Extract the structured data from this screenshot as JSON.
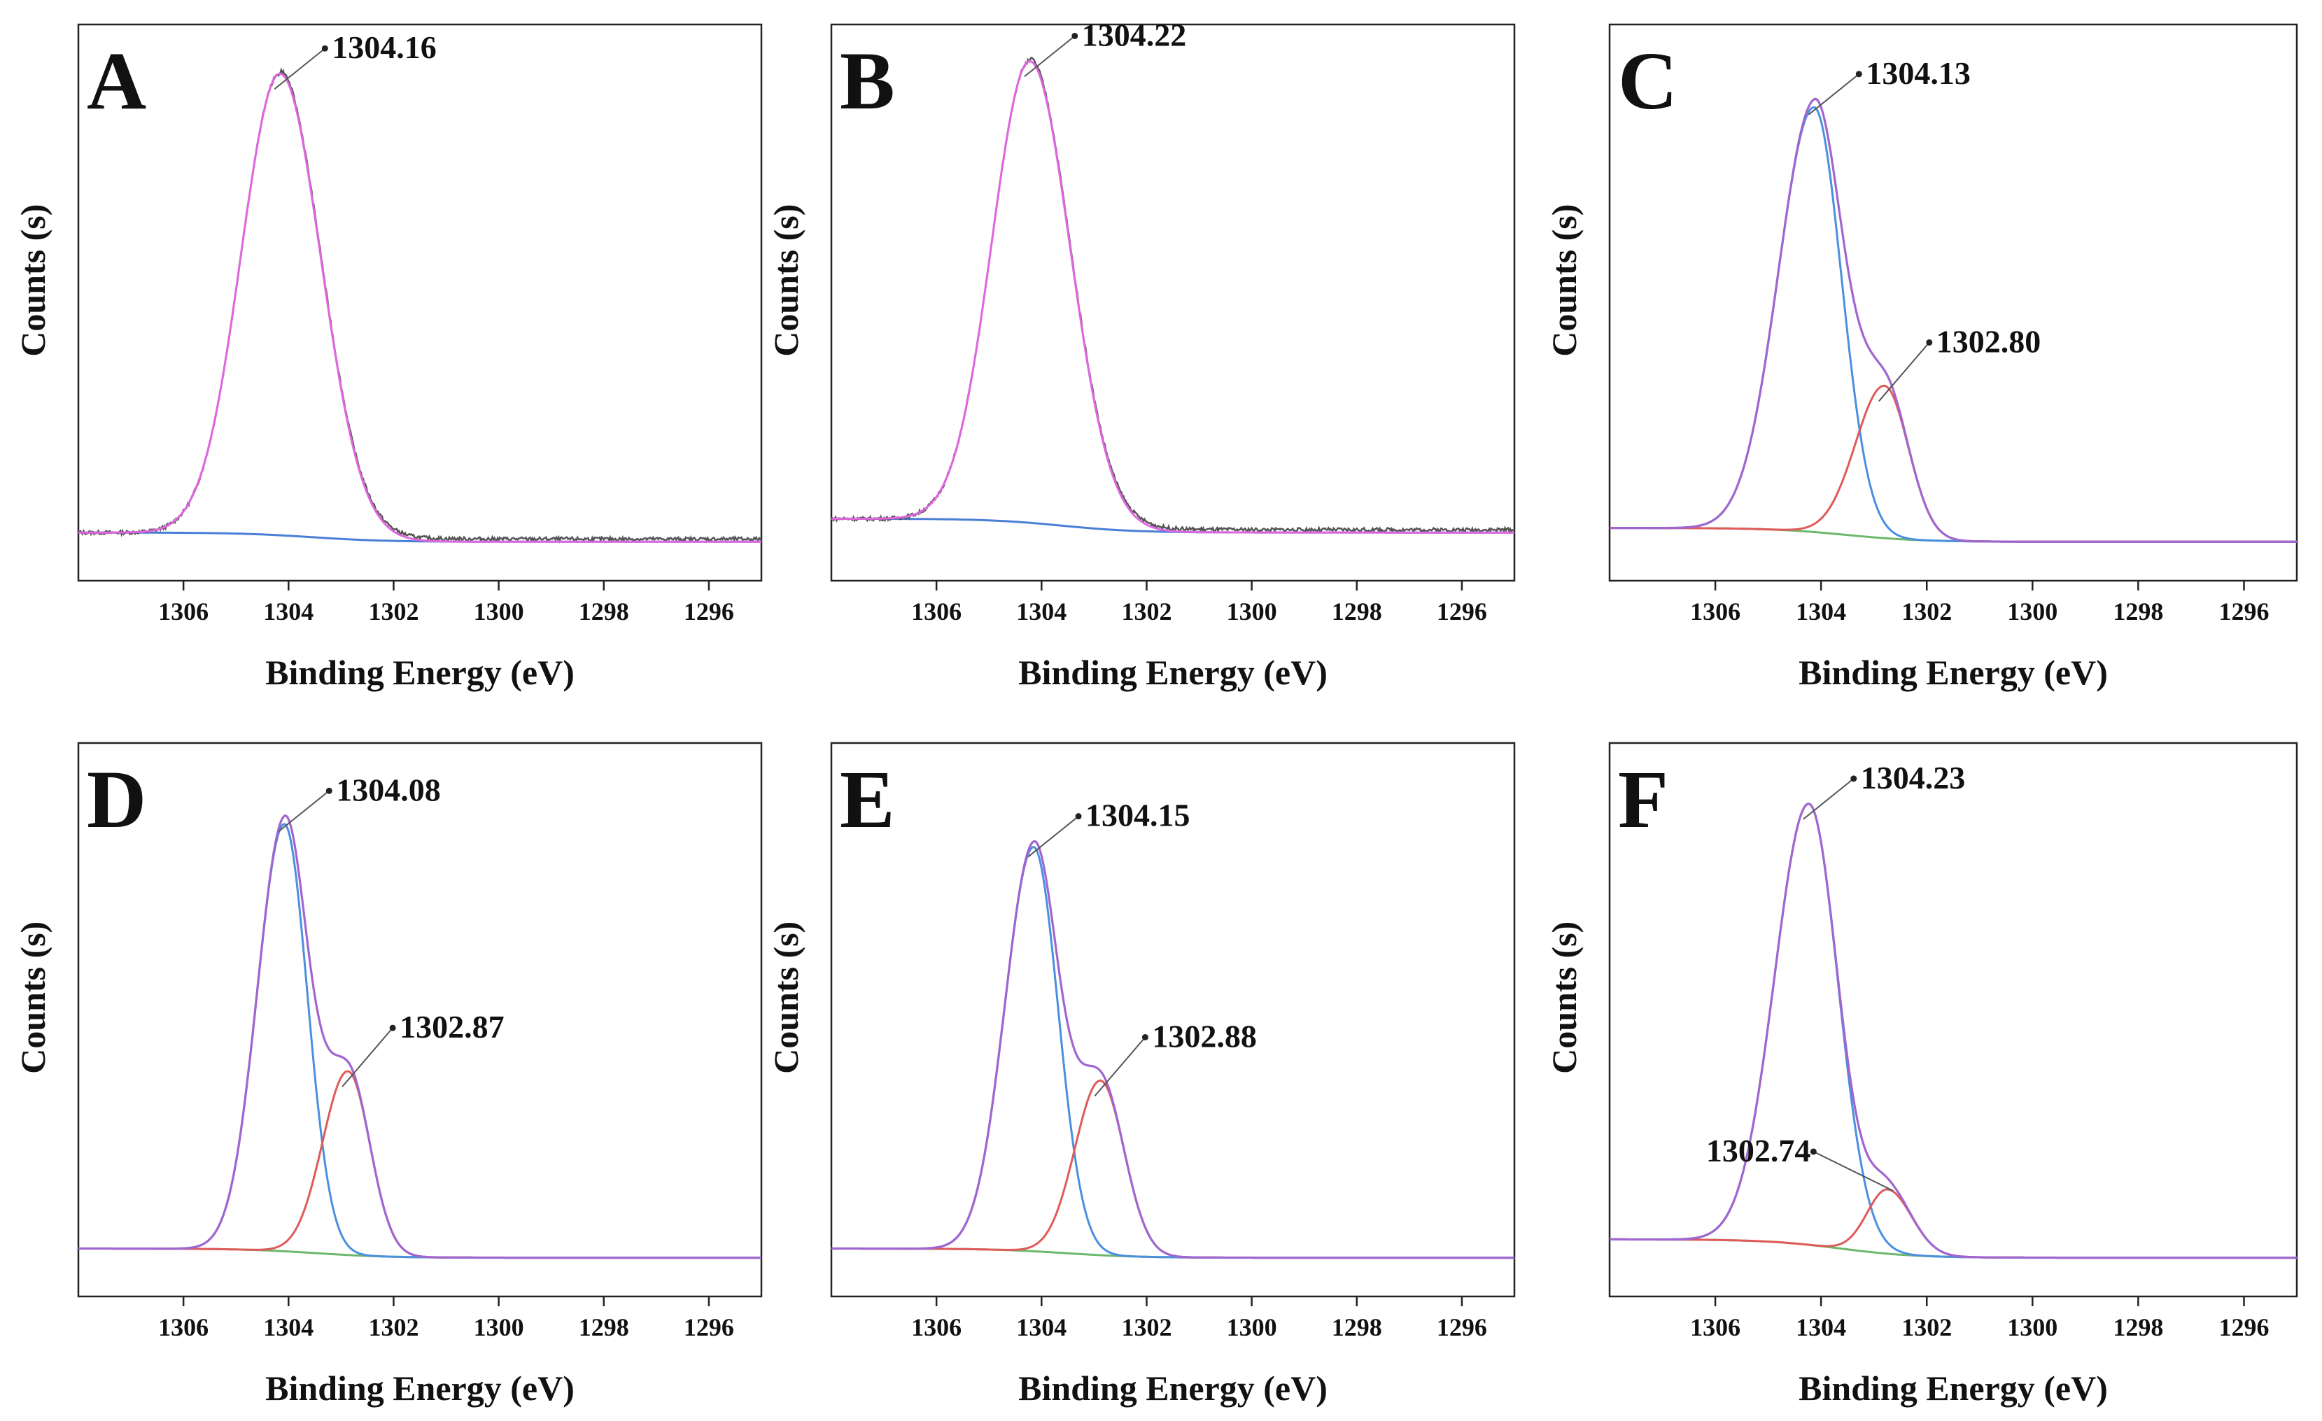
{
  "figure": {
    "xlabel": "Binding Energy (eV)",
    "ylabel": "Counts (s)"
  },
  "chart_data": [
    {
      "panel": "A",
      "type": "line",
      "xlabel": "Binding Energy (eV)",
      "ylabel": "Counts (s)",
      "xlim": [
        1308,
        1295
      ],
      "x_reversed": true,
      "xticks": [
        1306,
        1304,
        1302,
        1300,
        1298,
        1296
      ],
      "background": [
        0.02,
        0.0
      ],
      "envelope_peak": 1.0,
      "components": [
        {
          "name": "main",
          "center": 1304.16,
          "height": 1.0,
          "width_left": 1.15,
          "width_right": 1.2,
          "color": "#e066e0"
        }
      ],
      "raw_color": "#555555",
      "background_color": "#4a7fd6",
      "annotations": [
        {
          "text": "1304.16",
          "x": 1304.16
        }
      ]
    },
    {
      "panel": "B",
      "type": "line",
      "xlabel": "Binding Energy (eV)",
      "ylabel": "Counts (s)",
      "xlim": [
        1308,
        1295
      ],
      "x_reversed": true,
      "xticks": [
        1306,
        1304,
        1302,
        1300,
        1298,
        1296
      ],
      "background": [
        0.05,
        0.02
      ],
      "envelope_peak": 1.0,
      "components": [
        {
          "name": "main",
          "center": 1304.22,
          "height": 1.0,
          "width_left": 1.12,
          "width_right": 1.18,
          "color": "#e066e0"
        }
      ],
      "raw_color": "#555555",
      "background_color": "#4a7fd6",
      "annotations": [
        {
          "text": "1304.22",
          "x": 1304.22
        }
      ]
    },
    {
      "panel": "C",
      "type": "line",
      "xlabel": "Binding Energy (eV)",
      "ylabel": "Counts (s)",
      "xlim": [
        1308,
        1295
      ],
      "x_reversed": true,
      "xticks": [
        1306,
        1304,
        1302,
        1300,
        1298,
        1296
      ],
      "background": [
        0.03,
        0.0
      ],
      "components": [
        {
          "name": "peak1",
          "center": 1304.13,
          "height": 0.92,
          "width_left": 1.05,
          "width_right": 0.8,
          "color": "#4a8fe0"
        },
        {
          "name": "peak2",
          "center": 1302.8,
          "height": 0.33,
          "width_left": 0.85,
          "width_right": 0.7,
          "color": "#e05a5a"
        }
      ],
      "envelope_color": "#a066d0",
      "background_color": "#6db86d",
      "annotations": [
        {
          "text": "1304.13",
          "x": 1304.13
        },
        {
          "text": "1302.80",
          "x": 1302.8
        }
      ]
    },
    {
      "panel": "D",
      "type": "line",
      "xlabel": "Binding Energy (eV)",
      "ylabel": "Counts (s)",
      "xlim": [
        1308,
        1295
      ],
      "x_reversed": true,
      "xticks": [
        1306,
        1304,
        1302,
        1300,
        1298,
        1296
      ],
      "background": [
        0.02,
        0.0
      ],
      "components": [
        {
          "name": "peak1",
          "center": 1304.08,
          "height": 0.93,
          "width_left": 0.8,
          "width_right": 0.68,
          "color": "#4a8fe0"
        },
        {
          "name": "peak2",
          "center": 1302.87,
          "height": 0.4,
          "width_left": 0.75,
          "width_right": 0.65,
          "color": "#e05a5a"
        }
      ],
      "envelope_color": "#a066d0",
      "background_color": "#6db86d",
      "annotations": [
        {
          "text": "1304.08",
          "x": 1304.08
        },
        {
          "text": "1302.87",
          "x": 1302.87
        }
      ]
    },
    {
      "panel": "E",
      "type": "line",
      "xlabel": "Binding Energy (eV)",
      "ylabel": "Counts (s)",
      "xlim": [
        1308,
        1295
      ],
      "x_reversed": true,
      "xticks": [
        1306,
        1304,
        1302,
        1300,
        1298,
        1296
      ],
      "background": [
        0.02,
        0.0
      ],
      "components": [
        {
          "name": "peak1",
          "center": 1304.15,
          "height": 0.88,
          "width_left": 0.85,
          "width_right": 0.72,
          "color": "#4a8fe0"
        },
        {
          "name": "peak2",
          "center": 1302.88,
          "height": 0.38,
          "width_left": 0.75,
          "width_right": 0.7,
          "color": "#e05a5a"
        }
      ],
      "envelope_color": "#a066d0",
      "background_color": "#6db86d",
      "annotations": [
        {
          "text": "1304.15",
          "x": 1304.15
        },
        {
          "text": "1302.88",
          "x": 1302.88
        }
      ]
    },
    {
      "panel": "F",
      "type": "line",
      "xlabel": "Binding Energy (eV)",
      "ylabel": "Counts (s)",
      "xlim": [
        1308,
        1295
      ],
      "x_reversed": true,
      "xticks": [
        1306,
        1304,
        1302,
        1300,
        1298,
        1296
      ],
      "background": [
        0.04,
        0.0
      ],
      "components": [
        {
          "name": "peak1",
          "center": 1304.23,
          "height": 0.96,
          "width_left": 1.0,
          "width_right": 0.85,
          "color": "#4a8fe0"
        },
        {
          "name": "peak2",
          "center": 1302.74,
          "height": 0.14,
          "width_left": 0.6,
          "width_right": 0.7,
          "color": "#e05a5a"
        }
      ],
      "envelope_color": "#a066d0",
      "background_color": "#6db86d",
      "annotations": [
        {
          "text": "1304.23",
          "x": 1304.23
        },
        {
          "text": "1302.74",
          "x": 1302.74
        }
      ]
    }
  ]
}
